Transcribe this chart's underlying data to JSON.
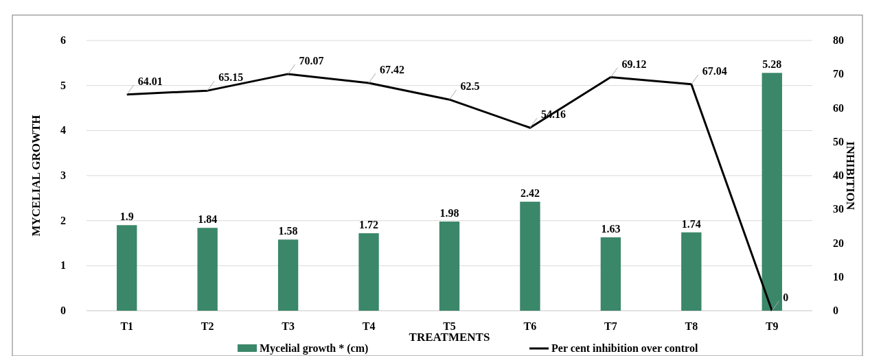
{
  "chart_data": {
    "type": "bar",
    "categories": [
      "T1",
      "T2",
      "T3",
      "T4",
      "T5",
      "T6",
      "T7",
      "T8",
      "T9"
    ],
    "series": [
      {
        "name": "Mycelial growth * (cm)",
        "color": "#3b876a",
        "values": [
          1.9,
          1.84,
          1.58,
          1.72,
          1.98,
          2.42,
          1.63,
          1.74,
          5.28
        ]
      },
      {
        "name": "Per cent inhibition over control",
        "type": "line",
        "axis": "y2",
        "color": "#000000",
        "values": [
          64.01,
          65.15,
          70.07,
          67.42,
          62.5,
          54.16,
          69.12,
          67.04,
          0
        ]
      }
    ],
    "xlabel": "TREATMENTS",
    "ylabel": "MYCELIAL GROWTH",
    "y2label": "INHIBITION",
    "ylim": [
      0,
      6
    ],
    "yticks": [
      0,
      1,
      2,
      3,
      4,
      5,
      6
    ],
    "y2lim": [
      0,
      80
    ],
    "y2ticks": [
      0,
      10,
      20,
      30,
      40,
      50,
      60,
      70,
      80
    ],
    "grid": "y",
    "legend": "bottom",
    "data_labels": true
  }
}
